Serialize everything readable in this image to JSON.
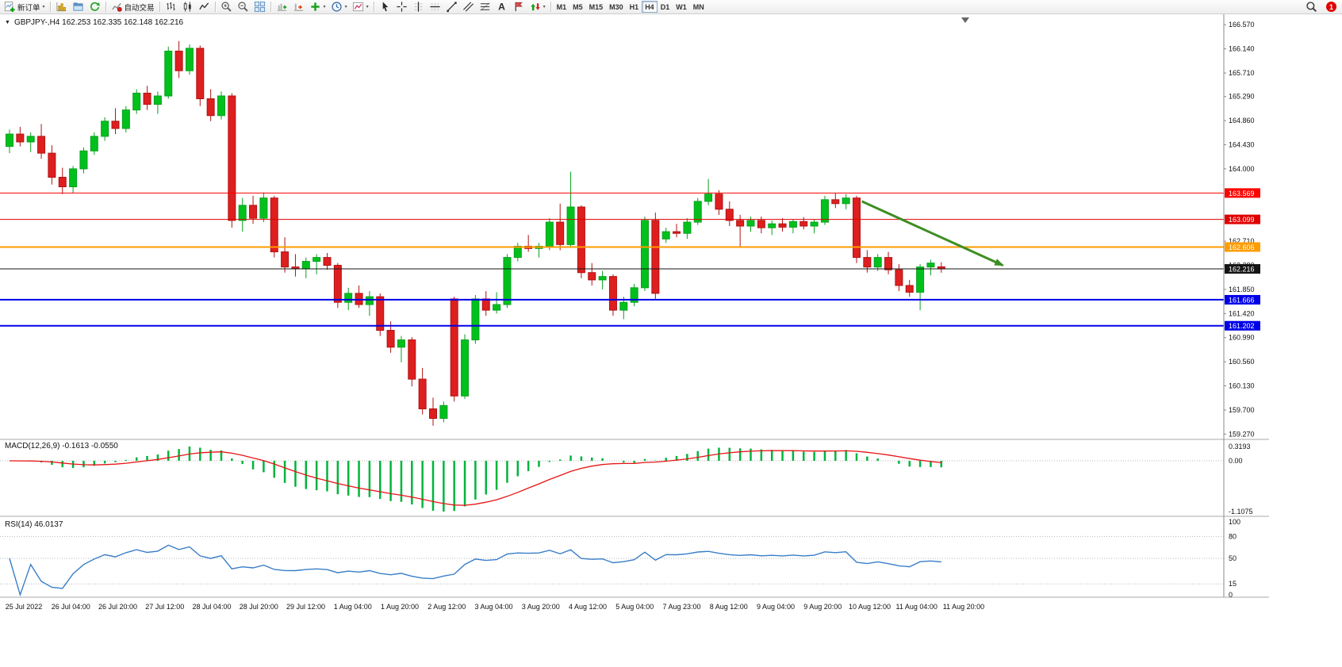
{
  "toolbar": {
    "groups": [
      {
        "name": "order",
        "items": [
          {
            "name": "new-order",
            "label": "新订单",
            "dropdown": true
          }
        ]
      },
      {
        "name": "charts",
        "items": [
          {
            "name": "new-chart"
          },
          {
            "name": "profiles"
          },
          {
            "name": "refresh"
          }
        ]
      },
      {
        "name": "autotrade",
        "items": [
          {
            "name": "autotrading",
            "label": "自动交易"
          }
        ]
      },
      {
        "name": "chart-type",
        "items": [
          {
            "name": "bar-chart"
          },
          {
            "name": "candlestick-chart"
          },
          {
            "name": "line-chart"
          }
        ]
      },
      {
        "name": "zoom",
        "items": [
          {
            "name": "zoom-in"
          },
          {
            "name": "zoom-out"
          },
          {
            "name": "tile-windows"
          }
        ]
      },
      {
        "name": "chart-tools",
        "items": [
          {
            "name": "auto-scroll"
          },
          {
            "name": "chart-shift"
          },
          {
            "name": "indicators",
            "dropdown": true
          },
          {
            "name": "periods",
            "dropdown": true
          },
          {
            "name": "templates",
            "dropdown": true
          }
        ]
      },
      {
        "name": "objects",
        "items": [
          {
            "name": "cursor"
          },
          {
            "name": "crosshair"
          },
          {
            "name": "vertical-line"
          },
          {
            "name": "horizontal-line"
          },
          {
            "name": "trendline"
          },
          {
            "name": "equidistant-channel"
          },
          {
            "name": "fibonacci"
          },
          {
            "name": "text"
          },
          {
            "name": "text-label"
          },
          {
            "name": "arrows",
            "dropdown": true
          }
        ]
      },
      {
        "name": "timeframes",
        "items": [
          {
            "name": "tf-m1",
            "label": "M1"
          },
          {
            "name": "tf-m5",
            "label": "M5"
          },
          {
            "name": "tf-m15",
            "label": "M15"
          },
          {
            "name": "tf-m30",
            "label": "M30"
          },
          {
            "name": "tf-h1",
            "label": "H1"
          },
          {
            "name": "tf-h4",
            "label": "H4",
            "active": true
          },
          {
            "name": "tf-d1",
            "label": "D1"
          },
          {
            "name": "tf-w1",
            "label": "W1"
          },
          {
            "name": "tf-mn",
            "label": "MN"
          }
        ]
      }
    ],
    "right": [
      {
        "name": "search",
        "label": ""
      },
      {
        "name": "notification-badge",
        "label": "1"
      }
    ]
  },
  "chart": {
    "symbol_title": "GBPJPY-,H4 162.253 162.335 162.148 162.216",
    "macd_title": "MACD(12,26,9) -0.1613 -0.0550",
    "rsi_title": "RSI(14) 46.0137"
  },
  "chart_data": {
    "type": "candlestick",
    "symbol": "GBPJPY-",
    "timeframe": "H4",
    "last_ohlc": {
      "open": 162.253,
      "high": 162.335,
      "low": 162.148,
      "close": 162.216
    },
    "price_axis": {
      "visible_min": 159.19,
      "visible_max": 166.7,
      "ticks": [
        "166.570",
        "166.140",
        "165.710",
        "165.290",
        "164.860",
        "164.430",
        "164.000",
        "162.710",
        "162.280",
        "161.850",
        "161.420",
        "160.990",
        "160.560",
        "160.130",
        "159.700",
        "159.270"
      ]
    },
    "time_labels": [
      "25 Jul 2022",
      "26 Jul 04:00",
      "26 Jul 20:00",
      "27 Jul 12:00",
      "28 Jul 04:00",
      "28 Jul 20:00",
      "29 Jul 12:00",
      "1 Aug 04:00",
      "1 Aug 20:00",
      "2 Aug 12:00",
      "3 Aug 04:00",
      "3 Aug 20:00",
      "4 Aug 12:00",
      "5 Aug 04:00",
      "7 Aug 23:00",
      "8 Aug 12:00",
      "9 Aug 04:00",
      "9 Aug 20:00",
      "10 Aug 12:00",
      "11 Aug 04:00",
      "11 Aug 20:00"
    ],
    "ohlc": [
      [
        164.4,
        164.7,
        164.28,
        164.62
      ],
      [
        164.62,
        164.75,
        164.4,
        164.48
      ],
      [
        164.48,
        164.65,
        164.3,
        164.58
      ],
      [
        164.58,
        164.8,
        164.18,
        164.28
      ],
      [
        164.28,
        164.42,
        163.72,
        163.85
      ],
      [
        163.85,
        164.02,
        163.55,
        163.68
      ],
      [
        163.68,
        164.05,
        163.57,
        164.0
      ],
      [
        164.0,
        164.38,
        163.92,
        164.32
      ],
      [
        164.32,
        164.65,
        164.25,
        164.58
      ],
      [
        164.58,
        164.92,
        164.5,
        164.85
      ],
      [
        164.85,
        165.08,
        164.62,
        164.72
      ],
      [
        164.72,
        165.12,
        164.65,
        165.05
      ],
      [
        165.05,
        165.42,
        164.98,
        165.35
      ],
      [
        165.35,
        165.48,
        165.05,
        165.15
      ],
      [
        165.15,
        165.38,
        164.98,
        165.3
      ],
      [
        165.3,
        166.18,
        165.25,
        166.1
      ],
      [
        166.1,
        166.28,
        165.62,
        165.75
      ],
      [
        165.75,
        166.22,
        165.68,
        166.15
      ],
      [
        166.15,
        166.2,
        165.12,
        165.25
      ],
      [
        165.25,
        165.42,
        164.85,
        164.95
      ],
      [
        164.95,
        165.38,
        164.88,
        165.3
      ],
      [
        165.3,
        165.35,
        162.95,
        163.08
      ],
      [
        163.08,
        163.48,
        162.88,
        163.35
      ],
      [
        163.35,
        163.52,
        163.02,
        163.12
      ],
      [
        163.12,
        163.58,
        163.05,
        163.48
      ],
      [
        163.48,
        163.52,
        162.42,
        162.52
      ],
      [
        162.52,
        162.78,
        162.15,
        162.25
      ],
      [
        162.25,
        162.48,
        162.08,
        162.22
      ],
      [
        162.22,
        162.42,
        162.05,
        162.35
      ],
      [
        162.35,
        162.48,
        162.12,
        162.42
      ],
      [
        162.42,
        162.5,
        162.2,
        162.28
      ],
      [
        162.28,
        162.32,
        161.52,
        161.62
      ],
      [
        161.62,
        161.88,
        161.48,
        161.78
      ],
      [
        161.78,
        161.92,
        161.52,
        161.58
      ],
      [
        161.58,
        161.82,
        161.38,
        161.72
      ],
      [
        161.72,
        161.78,
        161.02,
        161.12
      ],
      [
        161.12,
        161.28,
        160.72,
        160.82
      ],
      [
        160.82,
        161.02,
        160.55,
        160.95
      ],
      [
        160.95,
        161.0,
        160.12,
        160.25
      ],
      [
        160.25,
        160.45,
        159.62,
        159.72
      ],
      [
        159.72,
        159.92,
        159.42,
        159.55
      ],
      [
        159.55,
        159.85,
        159.48,
        159.78
      ],
      [
        161.68,
        161.72,
        159.85,
        159.95
      ],
      [
        159.95,
        161.05,
        159.9,
        160.95
      ],
      [
        160.95,
        161.75,
        160.88,
        161.68
      ],
      [
        161.68,
        161.82,
        161.38,
        161.48
      ],
      [
        161.48,
        161.8,
        161.42,
        161.58
      ],
      [
        161.58,
        162.48,
        161.52,
        162.42
      ],
      [
        162.42,
        162.68,
        162.35,
        162.62
      ],
      [
        162.62,
        162.82,
        162.52,
        162.58
      ],
      [
        162.58,
        162.68,
        162.42,
        162.62
      ],
      [
        162.62,
        163.12,
        162.55,
        163.05
      ],
      [
        163.05,
        163.38,
        162.55,
        162.65
      ],
      [
        162.65,
        163.95,
        162.6,
        163.32
      ],
      [
        163.32,
        163.35,
        162.05,
        162.15
      ],
      [
        162.15,
        162.32,
        161.92,
        162.02
      ],
      [
        162.02,
        162.18,
        161.85,
        162.08
      ],
      [
        162.08,
        162.12,
        161.38,
        161.48
      ],
      [
        161.48,
        161.72,
        161.32,
        161.62
      ],
      [
        161.62,
        161.95,
        161.55,
        161.88
      ],
      [
        161.88,
        163.15,
        161.82,
        163.08
      ],
      [
        163.08,
        163.22,
        161.68,
        161.78
      ],
      [
        162.75,
        162.95,
        162.68,
        162.88
      ],
      [
        162.88,
        163.02,
        162.78,
        162.85
      ],
      [
        162.85,
        163.12,
        162.75,
        163.05
      ],
      [
        163.05,
        163.48,
        163.0,
        163.42
      ],
      [
        163.42,
        163.82,
        163.35,
        163.55
      ],
      [
        163.55,
        163.62,
        163.18,
        163.28
      ],
      [
        163.28,
        163.42,
        162.98,
        163.08
      ],
      [
        163.08,
        163.18,
        162.62,
        162.98
      ],
      [
        162.98,
        163.15,
        162.88,
        163.08
      ],
      [
        163.08,
        163.15,
        162.85,
        162.95
      ],
      [
        162.95,
        163.08,
        162.82,
        163.02
      ],
      [
        163.02,
        163.12,
        162.88,
        162.96
      ],
      [
        162.96,
        163.1,
        162.85,
        163.06
      ],
      [
        163.06,
        163.14,
        162.92,
        162.98
      ],
      [
        162.98,
        163.1,
        162.85,
        163.05
      ],
      [
        163.05,
        163.52,
        163.0,
        163.45
      ],
      [
        163.45,
        163.57,
        163.3,
        163.38
      ],
      [
        163.38,
        163.55,
        163.28,
        163.48
      ],
      [
        163.48,
        163.52,
        162.32,
        162.42
      ],
      [
        162.42,
        162.55,
        162.15,
        162.25
      ],
      [
        162.25,
        162.48,
        162.18,
        162.42
      ],
      [
        162.42,
        162.52,
        162.12,
        162.2
      ],
      [
        162.2,
        162.3,
        161.82,
        161.92
      ],
      [
        161.92,
        162.02,
        161.72,
        161.8
      ],
      [
        161.8,
        162.3,
        161.48,
        162.25
      ],
      [
        162.25,
        162.38,
        162.1,
        162.32
      ],
      [
        162.253,
        162.335,
        162.148,
        162.216
      ]
    ],
    "horizontal_lines": [
      {
        "price": 163.569,
        "label": "163.569",
        "color": "#ff0000",
        "width": 1
      },
      {
        "price": 163.099,
        "label": "163.099",
        "color": "#e00000",
        "width": 1
      },
      {
        "price": 162.606,
        "label": "162.606",
        "color": "#ff9c00",
        "width": 2
      },
      {
        "price": 162.216,
        "label": "162.216",
        "color": "#151515",
        "width": 1
      },
      {
        "price": 161.666,
        "label": "161.666",
        "color": "#0000e8",
        "width": 2
      },
      {
        "price": 161.202,
        "label": "161.202",
        "color": "#0000e8",
        "width": 2
      }
    ],
    "trend_arrow": {
      "from": {
        "index": 80.5,
        "price": 163.42
      },
      "to": {
        "index": 93.8,
        "price": 162.28
      },
      "color": "#3e8e22"
    },
    "indicators": [
      {
        "type": "MACD",
        "params": [
          12,
          26,
          9
        ],
        "current": [
          -0.1613,
          -0.055
        ],
        "axis_ticks": [
          "0.3193",
          "0.00",
          "-1.1075"
        ],
        "histogram_color": "#00b43c",
        "signal_color": "#e81414"
      },
      {
        "type": "RSI",
        "params": [
          14
        ],
        "current": 46.0137,
        "axis_ticks": [
          "100",
          "80",
          "50",
          "15",
          "0"
        ],
        "levels": [
          80,
          50,
          15
        ],
        "line_color": "#3a7ec8"
      }
    ],
    "colors": {
      "up": "#00c11c",
      "up_stroke": "#089f1f",
      "down": "#de1f1f",
      "down_stroke": "#b01212",
      "background": "#ffffff",
      "axis_text": "#111111"
    }
  }
}
